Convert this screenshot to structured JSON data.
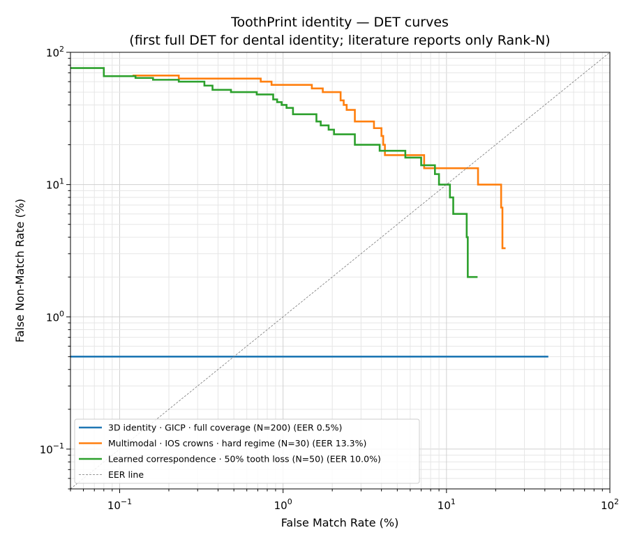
{
  "chart_data": {
    "type": "line",
    "title": "ToothPrint identity — DET curves",
    "subtitle": "(first full DET for dental identity; literature reports only Rank-N)",
    "xlabel": "False Match Rate (%)",
    "ylabel": "False Non-Match Rate (%)",
    "xscale": "log",
    "yscale": "log",
    "xlim": [
      0.05,
      100
    ],
    "ylim": [
      0.05,
      100
    ],
    "xticks": [
      {
        "value": 0.1,
        "base": "10",
        "exp": "−1"
      },
      {
        "value": 1,
        "base": "10",
        "exp": "0"
      },
      {
        "value": 10,
        "base": "10",
        "exp": "1"
      },
      {
        "value": 100,
        "base": "10",
        "exp": "2"
      }
    ],
    "yticks": [
      {
        "value": 0.1,
        "base": "10",
        "exp": "−1"
      },
      {
        "value": 1,
        "base": "10",
        "exp": "0"
      },
      {
        "value": 10,
        "base": "10",
        "exp": "1"
      },
      {
        "value": 100,
        "base": "10",
        "exp": "2"
      }
    ],
    "grid": true,
    "legend_position": "lower-left",
    "series": [
      {
        "name": "3D identity · GICP · full coverage (N=200)  (EER 0.5%)",
        "color": "#1f77b4",
        "style": "solid",
        "x": [
          0.05,
          42
        ],
        "y": [
          0.5,
          0.5
        ]
      },
      {
        "name": "Multimodal · IOS crowns · hard regime (N=30)  (EER 13.3%)",
        "color": "#ff7f0e",
        "style": "solid",
        "x": [
          0.12,
          0.23,
          0.23,
          0.73,
          0.73,
          0.85,
          0.85,
          1.5,
          1.5,
          1.75,
          1.75,
          2.25,
          2.25,
          2.35,
          2.35,
          2.45,
          2.45,
          2.75,
          2.75,
          3.6,
          3.6,
          4.0,
          4.0,
          4.1,
          4.1,
          4.2,
          4.2,
          5.7,
          5.7,
          7.3,
          7.3,
          10.6,
          10.6,
          15.6,
          15.6,
          21.6,
          21.6,
          22.0,
          22.0,
          23.0
        ],
        "y": [
          66.7,
          66.7,
          63.3,
          63.3,
          60.0,
          60.0,
          56.7,
          56.7,
          53.3,
          53.3,
          50.0,
          50.0,
          43.3,
          43.3,
          40.0,
          40.0,
          36.7,
          36.7,
          30.0,
          30.0,
          26.7,
          26.7,
          23.3,
          23.3,
          20.0,
          20.0,
          16.7,
          16.7,
          16.7,
          16.7,
          13.3,
          13.3,
          13.3,
          13.3,
          10.0,
          10.0,
          6.7,
          6.7,
          3.3,
          3.3
        ]
      },
      {
        "name": "Learned correspondence · 50% tooth loss (N=50)  (EER 10.0%)",
        "color": "#2ca02c",
        "style": "solid",
        "x": [
          0.05,
          0.08,
          0.08,
          0.125,
          0.125,
          0.16,
          0.16,
          0.23,
          0.23,
          0.33,
          0.33,
          0.37,
          0.37,
          0.48,
          0.48,
          0.69,
          0.69,
          0.87,
          0.87,
          0.92,
          0.92,
          0.98,
          0.98,
          1.05,
          1.05,
          1.15,
          1.15,
          1.6,
          1.6,
          1.7,
          1.7,
          1.9,
          1.9,
          2.05,
          2.05,
          2.75,
          2.75,
          3.9,
          3.9,
          5.6,
          5.6,
          7.0,
          7.0,
          8.5,
          8.5,
          9.0,
          9.0,
          10.5,
          10.5,
          11.0,
          11.0,
          13.3,
          13.3,
          13.5,
          13.5,
          15.5
        ],
        "y": [
          76,
          76,
          66,
          66,
          64,
          64,
          62,
          62,
          60,
          60,
          56,
          56,
          52,
          52,
          50,
          50,
          48,
          48,
          44,
          44,
          42,
          42,
          40,
          40,
          38,
          38,
          34,
          34,
          30,
          30,
          28,
          28,
          26,
          26,
          24,
          24,
          20,
          20,
          18,
          18,
          16,
          16,
          14,
          14,
          12,
          12,
          10,
          10,
          8,
          8,
          6,
          6,
          4,
          4,
          2,
          2
        ]
      },
      {
        "name": "EER line",
        "color": "#777777",
        "style": "dashed",
        "x": [
          0.05,
          100
        ],
        "y": [
          0.05,
          100
        ]
      }
    ]
  }
}
